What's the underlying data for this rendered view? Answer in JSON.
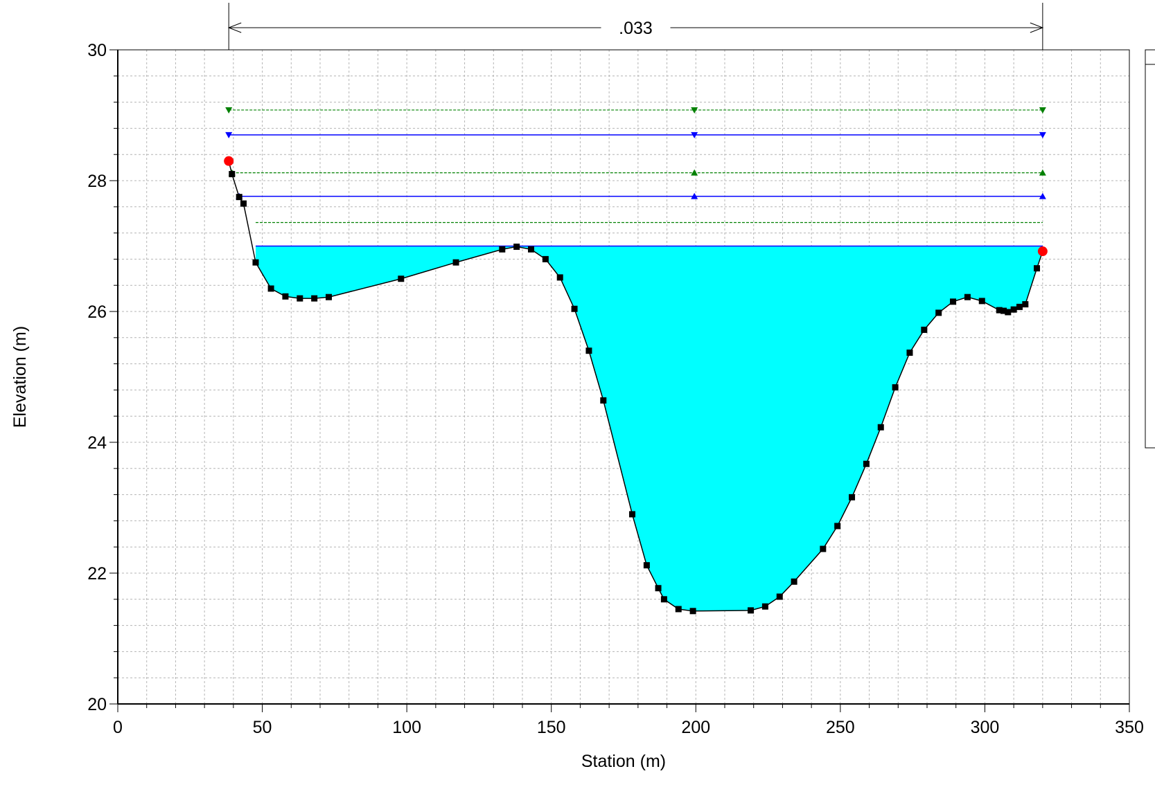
{
  "chart_data": {
    "type": "area",
    "xlabel": "Station (m)",
    "ylabel": "Elevation (m)",
    "xlim": [
      0,
      350
    ],
    "ylim": [
      20,
      30
    ],
    "x_ticks": [
      0,
      50,
      100,
      150,
      200,
      250,
      300,
      350
    ],
    "y_ticks": [
      20,
      22,
      24,
      26,
      28,
      30
    ],
    "x_ticks_labels": [
      "0",
      "50",
      "100",
      "150",
      "200",
      "250",
      "300",
      "350"
    ],
    "y_ticks_labels": [
      "20",
      "22",
      "24",
      "26",
      "28",
      "30"
    ],
    "grid": true,
    "manning": {
      "label": ".033",
      "x_start": 38.4,
      "x_end": 320
    },
    "ground": {
      "x": [
        38.4,
        39.5,
        42,
        43.5,
        47.7,
        53,
        58,
        63,
        68,
        73,
        98,
        117,
        133,
        138,
        143,
        148,
        153,
        158,
        163,
        168,
        178,
        183,
        187,
        189,
        194,
        199,
        219,
        224,
        229,
        234,
        244,
        249,
        254,
        259,
        264,
        269,
        274,
        279,
        284,
        289,
        294,
        299,
        305,
        306.5,
        308,
        310,
        312,
        314,
        318,
        320
      ],
      "y": [
        28.3,
        28.1,
        27.75,
        27.65,
        26.75,
        26.35,
        26.23,
        26.2,
        26.2,
        26.22,
        26.5,
        26.75,
        26.95,
        26.99,
        26.95,
        26.8,
        26.52,
        26.04,
        25.4,
        24.64,
        22.9,
        22.12,
        21.77,
        21.6,
        21.45,
        21.42,
        21.43,
        21.49,
        21.64,
        21.87,
        22.37,
        22.72,
        23.16,
        23.67,
        24.23,
        24.84,
        25.37,
        25.72,
        25.98,
        26.15,
        26.22,
        26.16,
        26.02,
        26.01,
        25.99,
        26.03,
        26.07,
        26.11,
        26.66,
        26.92
      ]
    },
    "bank_stations": [
      {
        "x": 38.4,
        "y": 28.3
      },
      {
        "x": 320,
        "y": 26.92
      }
    ],
    "water_surface": {
      "elevation": 27.0,
      "x_start": 47.7,
      "x_end": 320,
      "fill_color": "#00ffff"
    },
    "series": [
      {
        "elevation": 29.08,
        "style": "dashed",
        "color": "#008000",
        "marker": "triangle-down",
        "x_start": 38.4,
        "x_end": 320,
        "markers_x": [
          38.4,
          199.5,
          320
        ]
      },
      {
        "elevation": 28.7,
        "style": "solid",
        "color": "#0000ff",
        "marker": "triangle-down",
        "x_start": 38.4,
        "x_end": 320,
        "markers_x": [
          38.4,
          199.5,
          320
        ]
      },
      {
        "elevation": 28.12,
        "style": "dashed",
        "color": "#008000",
        "marker": "triangle-up",
        "x_start": 39.5,
        "x_end": 320,
        "markers_x": [
          39.5,
          199.5,
          320
        ]
      },
      {
        "elevation": 27.76,
        "style": "solid",
        "color": "#0000ff",
        "marker": "triangle-up",
        "x_start": 42,
        "x_end": 320,
        "markers_x": [
          42,
          199.5,
          320
        ]
      },
      {
        "elevation": 27.36,
        "style": "dashed",
        "color": "#008000",
        "marker": "none",
        "x_start": 47.7,
        "x_end": 320,
        "markers_x": []
      },
      {
        "elevation": 27.0,
        "style": "solid",
        "color": "#0000ff",
        "marker": "none",
        "x_start": 47.7,
        "x_end": 320,
        "markers_x": []
      }
    ],
    "colors": {
      "ground_line": "#000000",
      "ground_marker": "#000000",
      "bank_station": "#ff0000",
      "water_fill": "#00ffff",
      "grid": "#b4b4b4"
    }
  },
  "legend": {
    "entries": []
  }
}
